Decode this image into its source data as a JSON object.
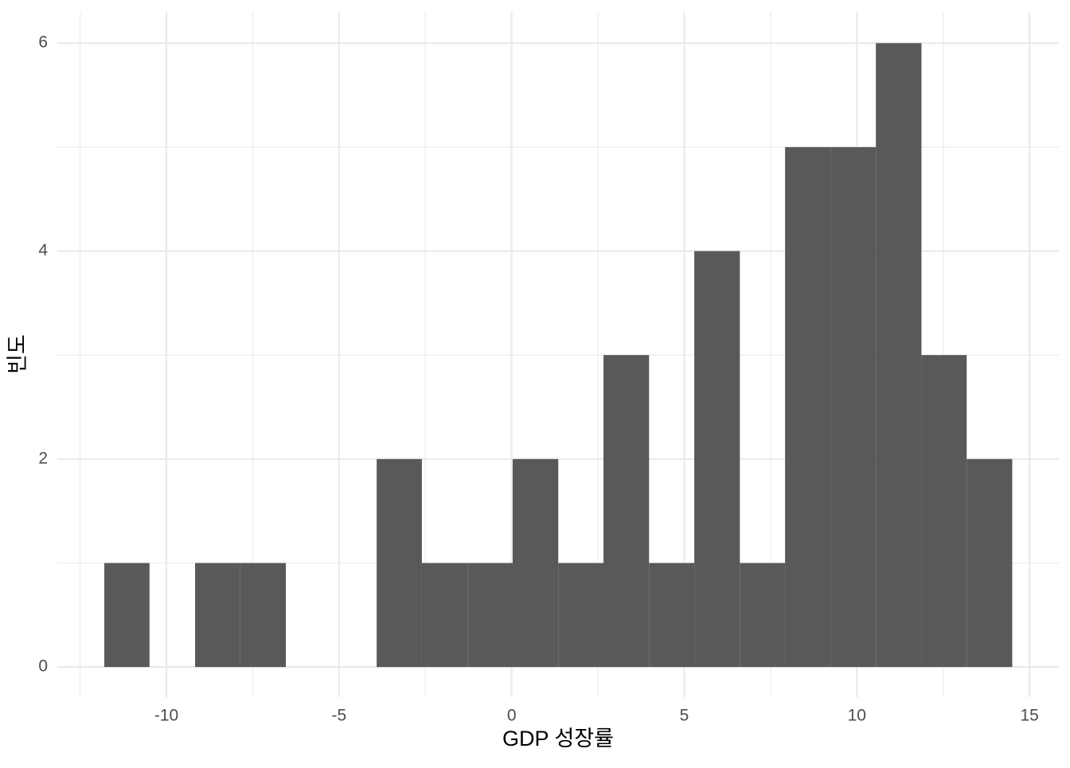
{
  "chart_data": {
    "type": "histogram",
    "xlabel": "GDP 성장률",
    "ylabel": "빈도",
    "bins": [
      -11.8,
      -10.49,
      -9.17,
      -7.86,
      -6.54,
      -5.23,
      -3.91,
      -2.6,
      -1.28,
      0.03,
      1.35,
      2.66,
      3.98,
      5.29,
      6.61,
      7.92,
      9.24,
      10.55,
      11.87,
      13.18,
      14.5
    ],
    "values": [
      1,
      0,
      1,
      1,
      0,
      0,
      2,
      1,
      1,
      2,
      1,
      3,
      1,
      4,
      1,
      5,
      5,
      6,
      3,
      2
    ],
    "color": "#595959",
    "xlim": [
      -13.16,
      15.85
    ],
    "ylim": [
      -0.29,
      6.3
    ],
    "xticks": [
      -10,
      -5,
      0,
      5,
      10,
      15
    ],
    "yticks": [
      0,
      2,
      4,
      6
    ],
    "grid": true
  }
}
